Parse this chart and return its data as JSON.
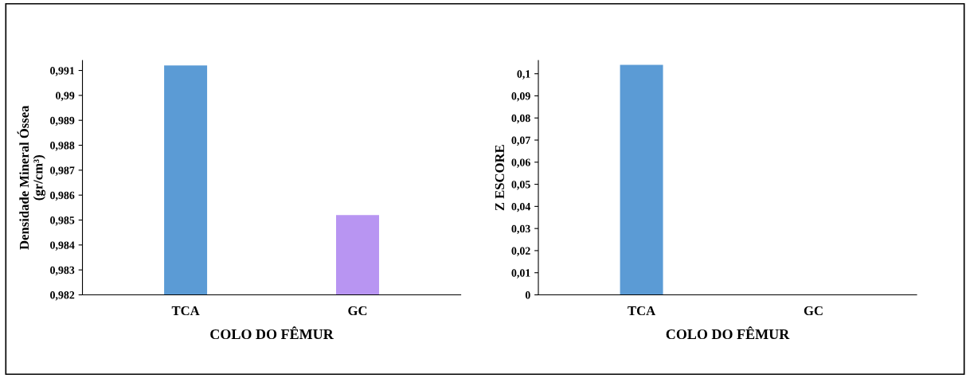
{
  "chart_data": [
    {
      "type": "bar",
      "categories": [
        "TCA",
        "GC"
      ],
      "values": [
        0.9912,
        0.9852
      ],
      "colors": [
        "#5b9bd5",
        "#b895f2"
      ],
      "xlabel": "COLO DO FÊMUR",
      "ylabel": "Densidade Mineral Óssea\n(gr/cm³)",
      "ylim": [
        0.982,
        0.9914
      ],
      "yticks": [
        {
          "value": 0.982,
          "label": "0,982"
        },
        {
          "value": 0.983,
          "label": "0,983"
        },
        {
          "value": 0.984,
          "label": "0,984"
        },
        {
          "value": 0.985,
          "label": "0,985"
        },
        {
          "value": 0.986,
          "label": "0,986"
        },
        {
          "value": 0.987,
          "label": "0,987"
        },
        {
          "value": 0.988,
          "label": "0,988"
        },
        {
          "value": 0.989,
          "label": "0,989"
        },
        {
          "value": 0.99,
          "label": "0,99"
        },
        {
          "value": 0.991,
          "label": "0,991"
        }
      ],
      "grid": false
    },
    {
      "type": "bar",
      "categories": [
        "TCA",
        "GC"
      ],
      "values": [
        0.104,
        0.0
      ],
      "colors": [
        "#5b9bd5",
        "#9b83d9"
      ],
      "xlabel": "COLO DO FÊMUR",
      "ylabel": "Z ESCORE",
      "ylim": [
        0,
        0.106
      ],
      "yticks": [
        0,
        {
          "value": 0.01,
          "label": "0,01"
        },
        {
          "value": 0.02,
          "label": "0,02"
        },
        {
          "value": 0.03,
          "label": "0,03"
        },
        {
          "value": 0.04,
          "label": "0,04"
        },
        {
          "value": 0.05,
          "label": "0,05"
        },
        {
          "value": 0.06,
          "label": "0,06"
        },
        {
          "value": 0.07,
          "label": "0,07"
        },
        {
          "value": 0.08,
          "label": "0,08"
        },
        {
          "value": 0.09,
          "label": "0,09"
        },
        {
          "value": 0.1,
          "label": "0,1"
        }
      ],
      "grid": false
    }
  ]
}
